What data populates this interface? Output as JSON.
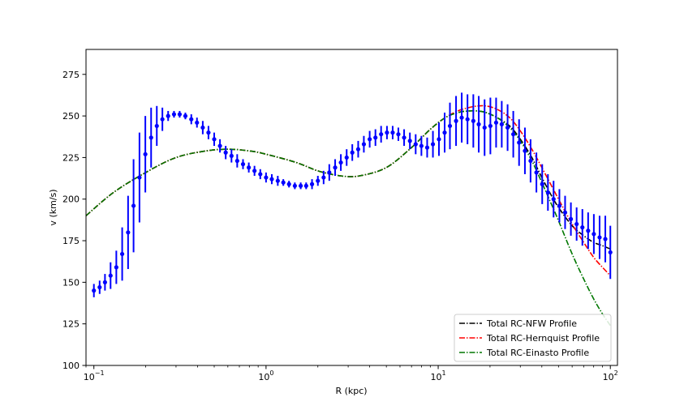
{
  "chart_data": {
    "type": "scatter",
    "xlabel": "R (kpc)",
    "ylabel": "v (km/s)",
    "x_scale": "log",
    "xlim": [
      0.09,
      110
    ],
    "ylim": [
      100,
      290
    ],
    "x_ticks": [
      {
        "value": 0.1,
        "base": "10",
        "exp": "−1"
      },
      {
        "value": 1,
        "base": "10",
        "exp": "0"
      },
      {
        "value": 10,
        "base": "10",
        "exp": "1"
      },
      {
        "value": 100,
        "base": "10",
        "exp": "2"
      }
    ],
    "y_ticks": [
      100,
      125,
      150,
      175,
      200,
      225,
      250,
      275
    ],
    "grid": false,
    "legend_position": "lower right",
    "observed": {
      "color": "#0000ff",
      "points": [
        [
          0.1,
          145,
          4
        ],
        [
          0.108,
          147,
          4
        ],
        [
          0.116,
          150,
          5
        ],
        [
          0.125,
          154,
          8
        ],
        [
          0.135,
          159,
          10
        ],
        [
          0.146,
          167,
          16
        ],
        [
          0.158,
          180,
          22
        ],
        [
          0.17,
          196,
          28
        ],
        [
          0.184,
          213,
          27
        ],
        [
          0.199,
          227,
          23
        ],
        [
          0.215,
          237,
          18
        ],
        [
          0.232,
          244,
          12
        ],
        [
          0.25,
          248,
          7
        ],
        [
          0.27,
          250,
          3
        ],
        [
          0.292,
          251,
          2
        ],
        [
          0.315,
          251,
          2
        ],
        [
          0.34,
          250,
          2
        ],
        [
          0.368,
          248,
          3
        ],
        [
          0.397,
          246,
          3
        ],
        [
          0.429,
          243,
          4
        ],
        [
          0.463,
          240,
          4
        ],
        [
          0.5,
          236,
          4
        ],
        [
          0.54,
          232,
          4
        ],
        [
          0.583,
          228,
          4
        ],
        [
          0.63,
          226,
          4
        ],
        [
          0.68,
          223,
          4
        ],
        [
          0.735,
          221,
          3
        ],
        [
          0.794,
          219,
          3
        ],
        [
          0.857,
          217,
          3
        ],
        [
          0.926,
          215,
          3
        ],
        [
          1.0,
          213,
          3
        ],
        [
          1.08,
          212,
          3
        ],
        [
          1.17,
          211,
          3
        ],
        [
          1.26,
          210,
          2
        ],
        [
          1.36,
          209,
          2
        ],
        [
          1.47,
          208,
          2
        ],
        [
          1.59,
          208,
          2
        ],
        [
          1.71,
          208,
          2
        ],
        [
          1.85,
          209,
          3
        ],
        [
          2.0,
          211,
          3
        ],
        [
          2.16,
          213,
          4
        ],
        [
          2.33,
          216,
          5
        ],
        [
          2.52,
          219,
          5
        ],
        [
          2.72,
          222,
          5
        ],
        [
          2.94,
          225,
          5
        ],
        [
          3.17,
          228,
          5
        ],
        [
          3.43,
          230,
          5
        ],
        [
          3.7,
          233,
          5
        ],
        [
          4.0,
          236,
          5
        ],
        [
          4.32,
          237,
          5
        ],
        [
          4.66,
          239,
          5
        ],
        [
          5.04,
          240,
          4
        ],
        [
          5.44,
          240,
          4
        ],
        [
          5.87,
          239,
          4
        ],
        [
          6.34,
          237,
          5
        ],
        [
          6.85,
          235,
          5
        ],
        [
          7.4,
          233,
          6
        ],
        [
          7.99,
          232,
          6
        ],
        [
          8.63,
          231,
          6
        ],
        [
          9.32,
          233,
          8
        ],
        [
          10.1,
          236,
          10
        ],
        [
          10.9,
          240,
          12
        ],
        [
          11.7,
          244,
          14
        ],
        [
          12.7,
          247,
          15
        ],
        [
          13.7,
          249,
          15
        ],
        [
          14.8,
          248,
          15
        ],
        [
          16.0,
          247,
          16
        ],
        [
          17.2,
          245,
          17
        ],
        [
          18.6,
          243,
          17
        ],
        [
          20.1,
          244,
          17
        ],
        [
          21.7,
          246,
          15
        ],
        [
          23.4,
          245,
          14
        ],
        [
          25.3,
          243,
          14
        ],
        [
          27.3,
          239,
          14
        ],
        [
          29.5,
          234,
          14
        ],
        [
          31.9,
          229,
          14
        ],
        [
          34.4,
          223,
          13
        ],
        [
          37.2,
          216,
          12
        ],
        [
          40.2,
          209,
          12
        ],
        [
          43.4,
          204,
          11
        ],
        [
          46.8,
          200,
          11
        ],
        [
          50.6,
          196,
          10
        ],
        [
          54.6,
          192,
          10
        ],
        [
          59.0,
          188,
          10
        ],
        [
          63.7,
          185,
          10
        ],
        [
          68.8,
          183,
          11
        ],
        [
          74.3,
          181,
          11
        ],
        [
          80.2,
          179,
          12
        ],
        [
          86.6,
          177,
          13
        ],
        [
          93.5,
          176,
          14
        ],
        [
          100,
          168,
          16
        ]
      ]
    },
    "series": [
      {
        "name": "Total RC-NFW Profile",
        "color": "#000000",
        "x": [
          0.09,
          0.13,
          0.2,
          0.3,
          0.45,
          0.6,
          0.8,
          1.0,
          1.5,
          2.0,
          2.7,
          3.5,
          5.0,
          7.0,
          9.0,
          11.0,
          13.0,
          15.0,
          17.0,
          19.0,
          22.0,
          26.0,
          30.0,
          35.0,
          40.0,
          45.0,
          50.0,
          60.0,
          70.0,
          80.0,
          90.0,
          100.0
        ],
        "y": [
          190,
          204,
          216,
          225,
          229,
          230,
          229,
          227,
          222,
          217,
          214,
          214,
          219,
          231,
          242,
          249,
          252,
          253,
          253,
          252,
          249,
          244,
          236,
          225,
          213,
          203,
          195,
          184,
          178,
          174,
          172,
          170
        ]
      },
      {
        "name": "Total RC-Hernquist Profile",
        "color": "#ff0000",
        "x": [
          0.09,
          0.13,
          0.2,
          0.3,
          0.45,
          0.6,
          0.8,
          1.0,
          1.5,
          2.0,
          2.7,
          3.5,
          5.0,
          7.0,
          9.0,
          11.0,
          13.0,
          15.0,
          17.0,
          19.0,
          22.0,
          26.0,
          30.0,
          35.0,
          40.0,
          45.0,
          50.0,
          60.0,
          70.0,
          80.0,
          90.0,
          100.0
        ],
        "y": [
          190,
          204,
          216,
          225,
          229,
          230,
          229,
          227,
          222,
          217,
          214,
          214,
          219,
          231,
          242,
          249,
          253,
          255,
          256,
          256,
          254,
          249,
          241,
          230,
          219,
          209,
          200,
          185,
          174,
          165,
          159,
          154
        ]
      },
      {
        "name": "Total RC-Einasto Profile",
        "color": "#007700",
        "x": [
          0.09,
          0.13,
          0.2,
          0.3,
          0.45,
          0.6,
          0.8,
          1.0,
          1.5,
          2.0,
          2.7,
          3.5,
          5.0,
          7.0,
          9.0,
          11.0,
          13.0,
          15.0,
          17.0,
          19.0,
          22.0,
          26.0,
          30.0,
          35.0,
          40.0,
          45.0,
          50.0,
          60.0,
          70.0,
          80.0,
          90.0,
          100.0
        ],
        "y": [
          190,
          204,
          216,
          225,
          229,
          230,
          229,
          227,
          222,
          217,
          214,
          214,
          219,
          231,
          242,
          249,
          252,
          253,
          253,
          252,
          249,
          243,
          235,
          223,
          210,
          198,
          187,
          167,
          152,
          140,
          131,
          124
        ]
      }
    ]
  }
}
